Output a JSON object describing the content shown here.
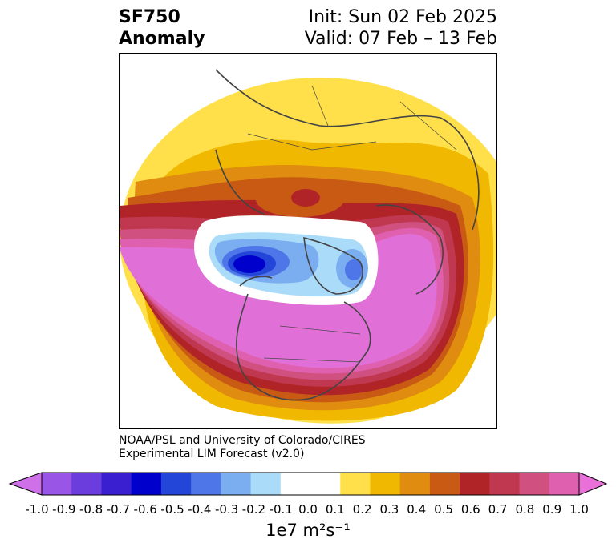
{
  "header": {
    "variable": "SF750",
    "field": "Anomaly",
    "init": "Init: Sun 02 Feb 2025",
    "valid": "Valid: 07 Feb – 13 Feb"
  },
  "credits": {
    "line1": "NOAA/PSL and University of Colorado/CIRES",
    "line2": "Experimental LIM Forecast (v2.0)"
  },
  "colorbar": {
    "label": "1e7 m²s⁻¹",
    "ticks": [
      "-1.0",
      "-0.9",
      "-0.8",
      "-0.7",
      "-0.6",
      "-0.5",
      "-0.4",
      "-0.3",
      "-0.2",
      "-0.1",
      "0.0",
      "0.1",
      "0.2",
      "0.3",
      "0.4",
      "0.5",
      "0.6",
      "0.7",
      "0.8",
      "0.9",
      "1.0"
    ],
    "colors": [
      "#9955e6",
      "#6a3ddc",
      "#3a1fd0",
      "#0000cc",
      "#2346d8",
      "#4f76e8",
      "#7aaef0",
      "#aadcfa",
      "#ffffff",
      "#ffffff",
      "#ffe04a",
      "#f0b800",
      "#e08c10",
      "#c85a14",
      "#b02428",
      "#c03850",
      "#d05080",
      "#e060b0"
    ],
    "extend_low": "#d070e8",
    "extend_high": "#e870d8"
  },
  "map": {
    "projection": "polar-stereographic",
    "palette": {
      "light_yellow": "#ffe04a",
      "gold": "#f0b800",
      "orange": "#e08c10",
      "dark_orange": "#c85a14",
      "red": "#b02428",
      "crimson": "#c03850",
      "rose": "#d05080",
      "pink": "#e060b0",
      "magenta": "#e070d8",
      "pale_blue": "#aadcfa",
      "light_blue": "#7aaef0",
      "mid_blue": "#4f76e8",
      "blue": "#2346d8",
      "dark_blue": "#0000cc",
      "coast": "#444444"
    }
  }
}
